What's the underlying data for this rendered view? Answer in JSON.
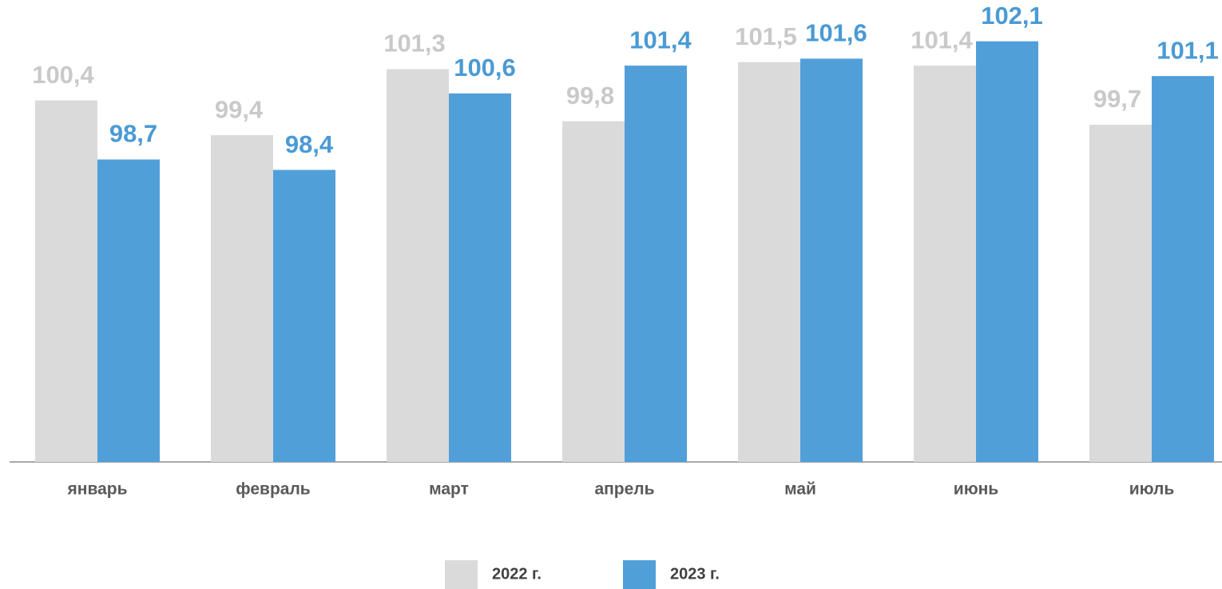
{
  "chart_data": {
    "type": "bar",
    "categories": [
      "январь",
      "февраль",
      "март",
      "апрель",
      "май",
      "июнь",
      "июль"
    ],
    "series": [
      {
        "name": "2022 г.",
        "color": "#dadada",
        "label_color": "#c9c9c9",
        "values": [
          100.4,
          99.4,
          101.3,
          99.8,
          101.5,
          101.4,
          99.7
        ],
        "value_labels": [
          "100,4",
          "99,4",
          "101,3",
          "99,8",
          "101,5",
          "101,4",
          "99,7"
        ]
      },
      {
        "name": "2023 г.",
        "color": "#519fd9",
        "label_color": "#4a9ad4",
        "values": [
          98.7,
          98.4,
          100.6,
          101.4,
          101.6,
          102.1,
          101.1
        ],
        "value_labels": [
          "98,7",
          "98,4",
          "100,6",
          "101,4",
          "101,6",
          "102,1",
          "101,1"
        ]
      }
    ],
    "ylim": [
      90,
      103
    ]
  }
}
